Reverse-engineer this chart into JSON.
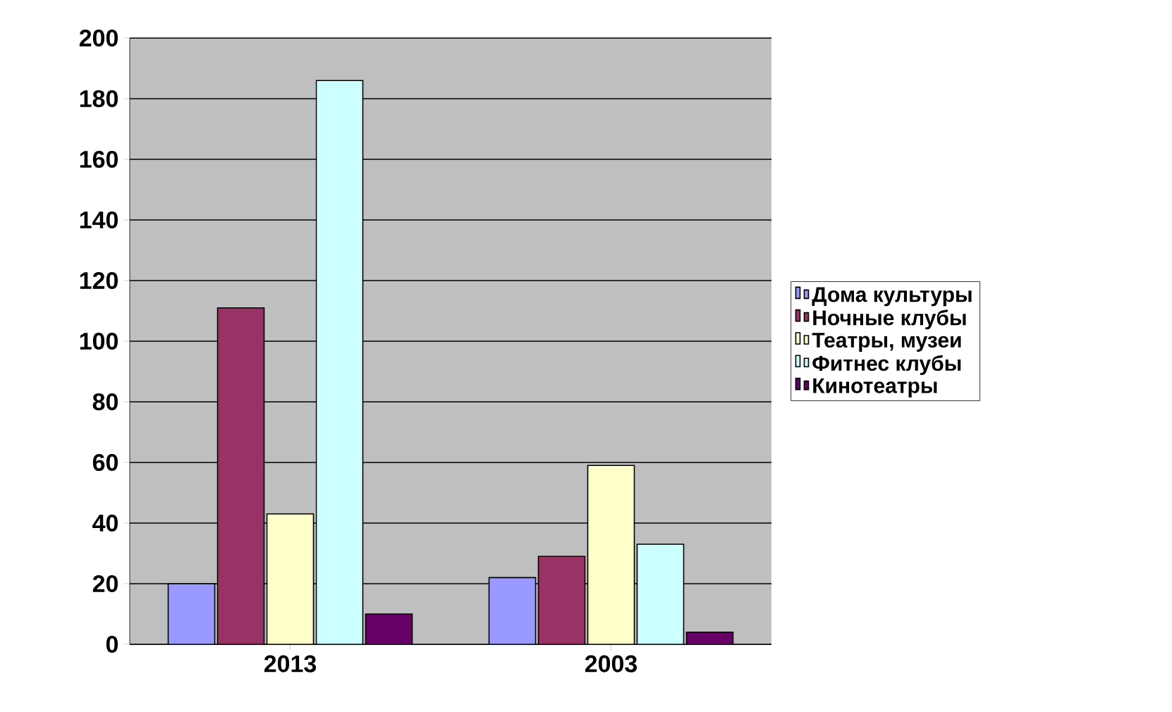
{
  "chart_data": {
    "type": "bar",
    "categories": [
      "2013",
      "2003"
    ],
    "series": [
      {
        "name": "Дома культуры",
        "color": "#9999ff",
        "values": [
          20,
          22
        ]
      },
      {
        "name": "Ночные клубы",
        "color": "#993366",
        "values": [
          111,
          29
        ]
      },
      {
        "name": "Театры, музеи",
        "color": "#ffffcc",
        "values": [
          43,
          59
        ]
      },
      {
        "name": "Фитнес клубы",
        "color": "#ccffff",
        "values": [
          186,
          33
        ]
      },
      {
        "name": "Кинотеатры",
        "color": "#660066",
        "values": [
          10,
          4
        ]
      }
    ],
    "ylim": [
      0,
      200
    ],
    "yticks": [
      0,
      20,
      40,
      60,
      80,
      100,
      120,
      140,
      160,
      180,
      200
    ],
    "grid": "y",
    "legend": "right"
  }
}
